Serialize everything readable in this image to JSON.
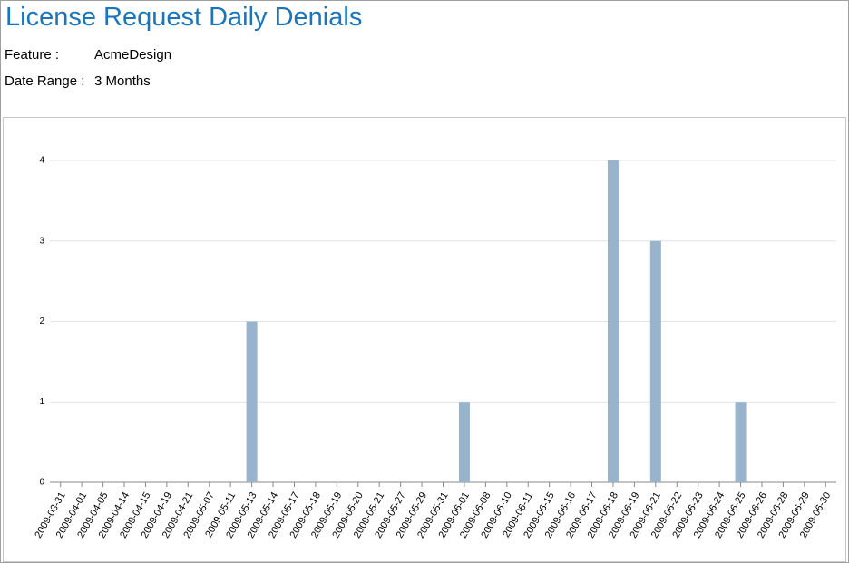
{
  "header": {
    "title": "License Request Daily Denials",
    "fields": [
      {
        "label": "Feature :",
        "value": "AcmeDesign"
      },
      {
        "label": "Date Range :",
        "value": "3 Months"
      }
    ]
  },
  "chart_data": {
    "type": "bar",
    "categories": [
      "2009-03-31",
      "2009-04-01",
      "2009-04-05",
      "2009-04-14",
      "2009-04-15",
      "2009-04-19",
      "2009-04-21",
      "2009-05-07",
      "2009-05-11",
      "2009-05-13",
      "2009-05-14",
      "2009-05-17",
      "2009-05-18",
      "2009-05-19",
      "2009-05-20",
      "2009-05-21",
      "2009-05-27",
      "2009-05-29",
      "2009-05-31",
      "2009-06-01",
      "2009-06-08",
      "2009-06-10",
      "2009-06-11",
      "2009-06-15",
      "2009-06-16",
      "2009-06-17",
      "2009-06-18",
      "2009-06-19",
      "2009-06-21",
      "2009-06-22",
      "2009-06-23",
      "2009-06-24",
      "2009-06-25",
      "2009-06-26",
      "2009-06-28",
      "2009-06-29",
      "2009-06-30"
    ],
    "values": [
      0,
      0,
      0,
      0,
      0,
      0,
      0,
      0,
      0,
      2,
      0,
      0,
      0,
      0,
      0,
      0,
      0,
      0,
      0,
      1,
      0,
      0,
      0,
      0,
      0,
      0,
      4,
      0,
      3,
      0,
      0,
      0,
      1,
      0,
      0,
      0,
      0
    ],
    "color": "#98b4cc",
    "ylim": [
      0,
      4
    ],
    "yticks": [
      0,
      1,
      2,
      3,
      4
    ],
    "grid": true
  }
}
